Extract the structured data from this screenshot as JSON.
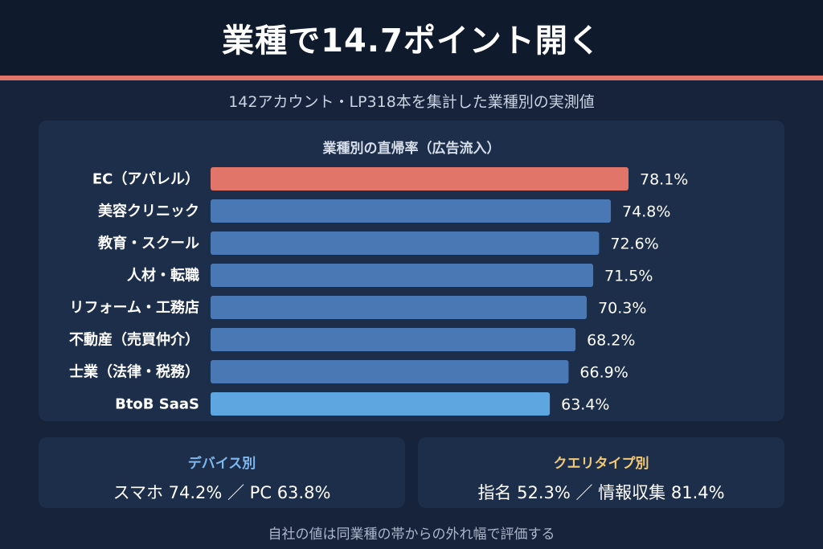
{
  "header": {
    "title": "業種で14.7ポイント開く"
  },
  "subtitle": "142アカウント・LP318本を集計した業種別の実測値",
  "chart_data": {
    "type": "bar",
    "orientation": "horizontal",
    "title": "業種別の直帰率（広告流入）",
    "categories": [
      "EC（アパレル）",
      "美容クリニック",
      "教育・スクール",
      "人材・転職",
      "リフォーム・工務店",
      "不動産（売買仲介）",
      "士業（法律・税務）",
      "BtoB SaaS"
    ],
    "values": [
      78.1,
      74.8,
      72.6,
      71.5,
      70.3,
      68.2,
      66.9,
      63.4
    ],
    "value_labels": [
      "78.1%",
      "74.8%",
      "72.6%",
      "71.5%",
      "70.3%",
      "68.2%",
      "66.9%",
      "63.4%"
    ],
    "unit": "%",
    "xlim": [
      0,
      78.1
    ],
    "grid": false,
    "colors": {
      "highlight_max": "#e2756a",
      "default": "#4a78b5",
      "highlight_min": "#5ea6df"
    }
  },
  "cards": {
    "device": {
      "title": "デバイス別",
      "value": "スマホ 74.2% ／ PC 63.8%"
    },
    "query": {
      "title": "クエリタイプ別",
      "value": "指名 52.3% ／ 情報収集 81.4%"
    }
  },
  "footnote": "自社の値は同業種の帯からの外れ幅で評価する"
}
